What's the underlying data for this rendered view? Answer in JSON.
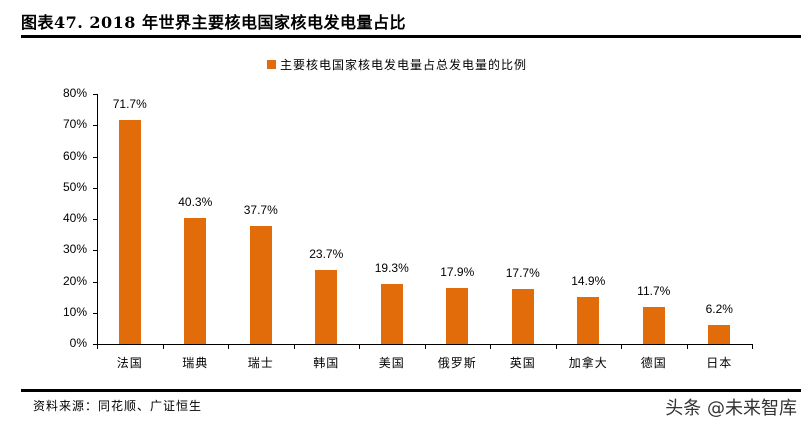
{
  "header": {
    "title": "图表47.  2018 年世界主要核电国家核电发电量占比"
  },
  "legend": {
    "label": "主要核电国家核电发电量占总发电量的比例",
    "color": "#e36c0a"
  },
  "footer": {
    "source": "资料来源：同花顺、广证恒生",
    "watermark": "头条 @未来智库"
  },
  "chart_data": {
    "type": "bar",
    "title": "2018 年世界主要核电国家核电发电量占比",
    "xlabel": "",
    "ylabel": "",
    "ylim": [
      0,
      80
    ],
    "yticks": [
      "0%",
      "10%",
      "20%",
      "30%",
      "40%",
      "50%",
      "60%",
      "70%",
      "80%"
    ],
    "categories": [
      "法国",
      "瑞典",
      "瑞士",
      "韩国",
      "美国",
      "俄罗斯",
      "英国",
      "加拿大",
      "德国",
      "日本"
    ],
    "series": [
      {
        "name": "主要核电国家核电发电量占总发电量的比例",
        "color": "#e36c0a",
        "values": [
          71.7,
          40.3,
          37.7,
          23.7,
          19.3,
          17.9,
          17.7,
          14.9,
          11.7,
          6.2
        ],
        "labels": [
          "71.7%",
          "40.3%",
          "37.7%",
          "23.7%",
          "19.3%",
          "17.9%",
          "17.7%",
          "14.9%",
          "11.7%",
          "6.2%"
        ]
      }
    ],
    "grid": false,
    "legend_position": "top"
  }
}
